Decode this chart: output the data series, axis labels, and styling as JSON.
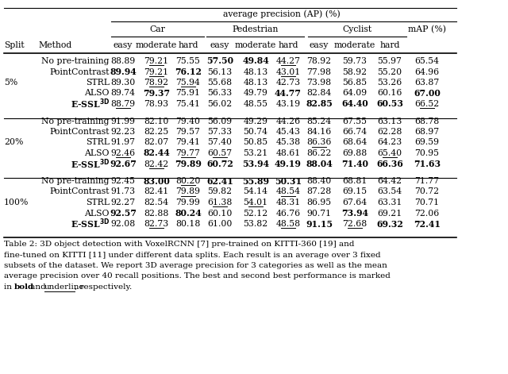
{
  "title": "average precision (AP) (%)",
  "figsize": [
    6.4,
    4.71
  ],
  "dpi": 100,
  "splits": [
    "5%",
    "20%",
    "100%"
  ],
  "data": {
    "5%": [
      {
        "method": "No pre-training",
        "vals": [
          "88.89",
          "79.21",
          "75.55",
          "57.50",
          "49.84",
          "44.27",
          "78.92",
          "59.73",
          "55.97",
          "65.54"
        ]
      },
      {
        "method": "PointContrast",
        "vals": [
          "89.94",
          "79.21",
          "76.12",
          "56.13",
          "48.13",
          "43.01",
          "77.98",
          "58.92",
          "55.20",
          "64.96"
        ]
      },
      {
        "method": "STRL",
        "vals": [
          "89.30",
          "78.92",
          "75.94",
          "55.68",
          "48.13",
          "42.73",
          "73.98",
          "56.85",
          "53.26",
          "63.87"
        ]
      },
      {
        "method": "ALSO",
        "vals": [
          "89.74",
          "79.37",
          "75.91",
          "56.33",
          "49.79",
          "44.77",
          "82.84",
          "64.09",
          "60.16",
          "67.00"
        ]
      },
      {
        "method": "E-SSL3D",
        "vals": [
          "88.79",
          "78.93",
          "75.41",
          "56.02",
          "48.55",
          "43.19",
          "82.85",
          "64.40",
          "60.53",
          "66.52"
        ]
      }
    ],
    "20%": [
      {
        "method": "No pre-training",
        "vals": [
          "91.99",
          "82.10",
          "79.40",
          "56.09",
          "49.29",
          "44.26",
          "85.24",
          "67.55",
          "63.13",
          "68.78"
        ]
      },
      {
        "method": "PointContrast",
        "vals": [
          "92.23",
          "82.25",
          "79.57",
          "57.33",
          "50.74",
          "45.43",
          "84.16",
          "66.74",
          "62.28",
          "68.97"
        ]
      },
      {
        "method": "STRL",
        "vals": [
          "91.97",
          "82.07",
          "79.41",
          "57.40",
          "50.85",
          "45.38",
          "86.36",
          "68.64",
          "64.23",
          "69.59"
        ]
      },
      {
        "method": "ALSO",
        "vals": [
          "92.46",
          "82.44",
          "79.77",
          "60.57",
          "53.21",
          "48.61",
          "86.22",
          "69.88",
          "65.40",
          "70.95"
        ]
      },
      {
        "method": "E-SSL3D",
        "vals": [
          "92.67",
          "82.42",
          "79.89",
          "60.72",
          "53.94",
          "49.19",
          "88.04",
          "71.40",
          "66.36",
          "71.63"
        ]
      }
    ],
    "100%": [
      {
        "method": "No pre-training",
        "vals": [
          "92.45",
          "83.00",
          "80.20",
          "62.41",
          "55.89",
          "50.31",
          "88.40",
          "68.81",
          "64.42",
          "71.77"
        ]
      },
      {
        "method": "PointContrast",
        "vals": [
          "91.73",
          "82.41",
          "79.89",
          "59.82",
          "54.14",
          "48.54",
          "87.28",
          "69.15",
          "63.54",
          "70.72"
        ]
      },
      {
        "method": "STRL",
        "vals": [
          "92.27",
          "82.54",
          "79.99",
          "61.38",
          "54.01",
          "48.31",
          "86.95",
          "67.64",
          "63.31",
          "70.71"
        ]
      },
      {
        "method": "ALSO",
        "vals": [
          "92.57",
          "82.88",
          "80.24",
          "60.10",
          "52.12",
          "46.76",
          "90.71",
          "73.94",
          "69.21",
          "72.06"
        ]
      },
      {
        "method": "E-SSL3D",
        "vals": [
          "92.08",
          "82.73",
          "80.18",
          "61.00",
          "53.82",
          "48.58",
          "91.15",
          "72.68",
          "69.32",
          "72.41"
        ]
      }
    ]
  },
  "bold": {
    "5%": [
      [
        false,
        false,
        false,
        true,
        true,
        false,
        false,
        false,
        false,
        false
      ],
      [
        true,
        false,
        true,
        false,
        false,
        false,
        false,
        false,
        false,
        false
      ],
      [
        false,
        false,
        false,
        false,
        false,
        false,
        false,
        false,
        false,
        false
      ],
      [
        false,
        true,
        false,
        false,
        false,
        true,
        false,
        false,
        false,
        true
      ],
      [
        false,
        false,
        false,
        false,
        false,
        false,
        true,
        true,
        true,
        false
      ]
    ],
    "20%": [
      [
        false,
        false,
        false,
        false,
        false,
        false,
        false,
        false,
        false,
        false
      ],
      [
        false,
        false,
        false,
        false,
        false,
        false,
        false,
        false,
        false,
        false
      ],
      [
        false,
        false,
        false,
        false,
        false,
        false,
        false,
        false,
        false,
        false
      ],
      [
        false,
        true,
        false,
        false,
        false,
        false,
        false,
        false,
        false,
        false
      ],
      [
        true,
        false,
        true,
        true,
        true,
        true,
        true,
        true,
        true,
        true
      ]
    ],
    "100%": [
      [
        false,
        true,
        false,
        true,
        true,
        true,
        false,
        false,
        false,
        false
      ],
      [
        false,
        false,
        false,
        false,
        false,
        false,
        false,
        false,
        false,
        false
      ],
      [
        false,
        false,
        false,
        false,
        false,
        false,
        false,
        false,
        false,
        false
      ],
      [
        true,
        false,
        true,
        false,
        false,
        false,
        false,
        true,
        false,
        false
      ],
      [
        false,
        false,
        false,
        false,
        false,
        false,
        true,
        false,
        true,
        true
      ]
    ]
  },
  "underline": {
    "5%": [
      [
        false,
        true,
        false,
        false,
        false,
        true,
        false,
        false,
        false,
        false
      ],
      [
        false,
        true,
        false,
        false,
        false,
        true,
        false,
        false,
        false,
        false
      ],
      [
        false,
        true,
        true,
        false,
        false,
        false,
        false,
        false,
        false,
        false
      ],
      [
        false,
        false,
        false,
        false,
        false,
        false,
        false,
        false,
        false,
        false
      ],
      [
        true,
        false,
        false,
        false,
        false,
        false,
        false,
        false,
        false,
        true
      ]
    ],
    "20%": [
      [
        false,
        false,
        false,
        false,
        false,
        false,
        false,
        false,
        false,
        false
      ],
      [
        false,
        false,
        false,
        false,
        false,
        false,
        false,
        false,
        false,
        false
      ],
      [
        false,
        false,
        false,
        false,
        false,
        false,
        true,
        false,
        false,
        false
      ],
      [
        true,
        false,
        true,
        true,
        false,
        false,
        false,
        false,
        true,
        false
      ],
      [
        false,
        true,
        false,
        false,
        false,
        false,
        false,
        false,
        false,
        false
      ]
    ],
    "100%": [
      [
        false,
        false,
        true,
        false,
        false,
        false,
        false,
        false,
        false,
        false
      ],
      [
        false,
        false,
        true,
        false,
        false,
        true,
        false,
        false,
        false,
        false
      ],
      [
        false,
        false,
        false,
        true,
        true,
        false,
        false,
        false,
        false,
        false
      ],
      [
        false,
        false,
        false,
        false,
        false,
        false,
        false,
        false,
        false,
        false
      ],
      [
        false,
        true,
        false,
        false,
        false,
        true,
        false,
        true,
        false,
        false
      ]
    ]
  }
}
